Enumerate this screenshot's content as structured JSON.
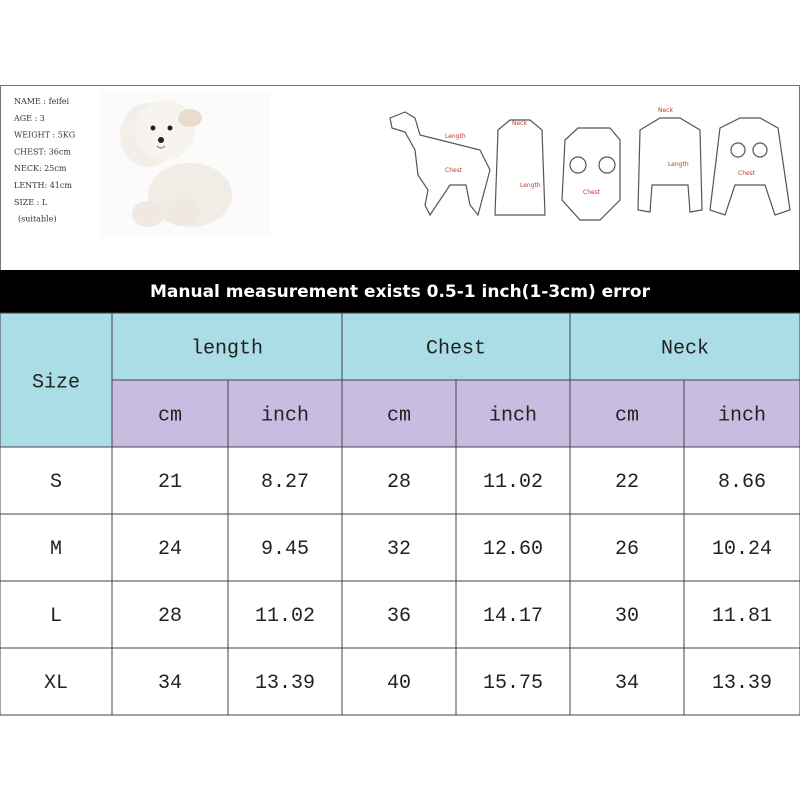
{
  "profile": {
    "lines": [
      "NAME : feifei",
      "AGE : 3",
      "WEIGHT : 5KG",
      "CHEST: 36cm",
      "NECK: 25cm",
      "LENTH: 41cm",
      "SIZE : L",
      "(suitable)"
    ]
  },
  "diagram_labels": [
    "Length",
    "Chest",
    "Neck",
    "Length",
    "Chest",
    "Neck",
    "Length",
    "Chest"
  ],
  "banner": "Manual measurement exists 0.5-1 inch(1-3cm) error",
  "table": {
    "size_header": "Size",
    "groups": [
      "length",
      "Chest",
      "Neck"
    ],
    "units": [
      "cm",
      "inch",
      "cm",
      "inch",
      "cm",
      "inch"
    ],
    "rows": [
      [
        "S",
        "21",
        "8.27",
        "28",
        "11.02",
        "22",
        "8.66"
      ],
      [
        "M",
        "24",
        "9.45",
        "32",
        "12.60",
        "26",
        "10.24"
      ],
      [
        "L",
        "28",
        "11.02",
        "36",
        "14.17",
        "30",
        "11.81"
      ],
      [
        "XL",
        "34",
        "13.39",
        "40",
        "15.75",
        "34",
        "13.39"
      ]
    ]
  }
}
